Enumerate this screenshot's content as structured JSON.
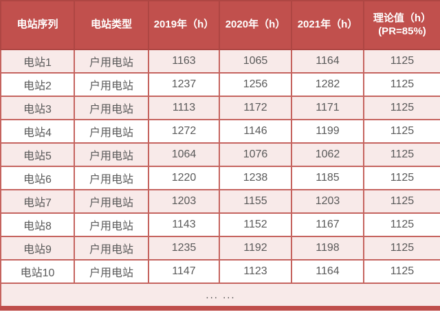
{
  "table": {
    "headers": [
      "电站序列",
      "电站类型",
      "2019年（h）",
      "2020年（h）",
      "2021年（h）",
      "理论值（h）\n(PR=85%)"
    ],
    "rows": [
      [
        "电站1",
        "户用电站",
        "1163",
        "1065",
        "1164",
        "1125"
      ],
      [
        "电站2",
        "户用电站",
        "1237",
        "1256",
        "1282",
        "1125"
      ],
      [
        "电站3",
        "户用电站",
        "1113",
        "1172",
        "1171",
        "1125"
      ],
      [
        "电站4",
        "户用电站",
        "1272",
        "1146",
        "1199",
        "1125"
      ],
      [
        "电站5",
        "户用电站",
        "1064",
        "1076",
        "1062",
        "1125"
      ],
      [
        "电站6",
        "户用电站",
        "1220",
        "1238",
        "1185",
        "1125"
      ],
      [
        "电站7",
        "户用电站",
        "1203",
        "1155",
        "1203",
        "1125"
      ],
      [
        "电站8",
        "户用电站",
        "1143",
        "1152",
        "1167",
        "1125"
      ],
      [
        "电站9",
        "户用电站",
        "1235",
        "1192",
        "1198",
        "1125"
      ],
      [
        "电站10",
        "户用电站",
        "1147",
        "1123",
        "1164",
        "1125"
      ]
    ],
    "ellipsis_label": "... ...",
    "colors": {
      "header_bg": "#C1504D",
      "header_text": "#FFFFFF",
      "grid_border": "#C5635E",
      "header_border": "#AE4643",
      "row_alt_bg": "#F8EAE9",
      "row_bg": "#FFFFFF",
      "cell_text": "#595959",
      "bottom_band": "#BF4E4B"
    }
  },
  "chart_data": {
    "type": "table",
    "title": "",
    "columns": [
      "电站序列",
      "电站类型",
      "2019年（h）",
      "2020年（h）",
      "2021年（h）",
      "理论值（h）(PR=85%)"
    ],
    "rows": [
      [
        "电站1",
        "户用电站",
        1163,
        1065,
        1164,
        1125
      ],
      [
        "电站2",
        "户用电站",
        1237,
        1256,
        1282,
        1125
      ],
      [
        "电站3",
        "户用电站",
        1113,
        1172,
        1171,
        1125
      ],
      [
        "电站4",
        "户用电站",
        1272,
        1146,
        1199,
        1125
      ],
      [
        "电站5",
        "户用电站",
        1064,
        1076,
        1062,
        1125
      ],
      [
        "电站6",
        "户用电站",
        1220,
        1238,
        1185,
        1125
      ],
      [
        "电站7",
        "户用电站",
        1203,
        1155,
        1203,
        1125
      ],
      [
        "电站8",
        "户用电站",
        1143,
        1152,
        1167,
        1125
      ],
      [
        "电站9",
        "户用电站",
        1235,
        1192,
        1198,
        1125
      ],
      [
        "电站10",
        "户用电站",
        1147,
        1123,
        1164,
        1125
      ]
    ],
    "annotations": [
      "... ..."
    ]
  }
}
